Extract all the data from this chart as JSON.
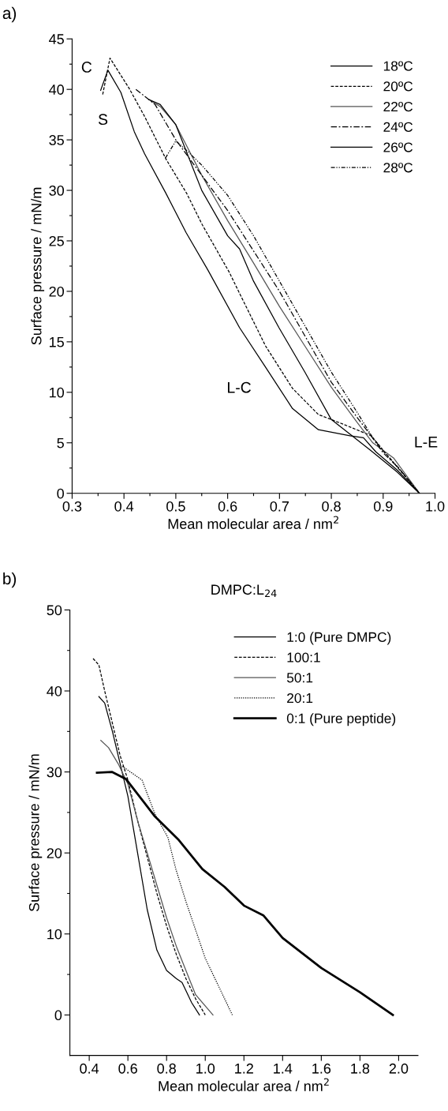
{
  "chart_data": [
    {
      "type": "line",
      "xlabel": "Mean molecular area / nm$^{2}$",
      "ylabel": "Surface pressure / mN/m",
      "xlim": [
        0.3,
        1.0
      ],
      "xticks": [
        0.3,
        {
          "value": 0.35,
          "label": null
        },
        0.4,
        {
          "value": 0.45,
          "label": null
        },
        0.5,
        {
          "value": 0.55,
          "label": null
        },
        0.6,
        {
          "value": 0.65,
          "label": null
        },
        0.7,
        {
          "value": 0.75,
          "label": null
        },
        0.8,
        {
          "value": 0.85,
          "label": null
        },
        0.9,
        {
          "value": 0.95,
          "label": null
        },
        {
          "value": 1,
          "label": "1.0"
        }
      ],
      "ylim": [
        0,
        45
      ],
      "yticks": [
        0,
        {
          "value": 2.5,
          "label": null
        },
        5,
        {
          "value": 7.5,
          "label": null
        },
        10,
        {
          "value": 12.5,
          "label": null
        },
        15,
        {
          "value": 17.5,
          "label": null
        },
        20,
        {
          "value": 22.5,
          "label": null
        },
        25,
        {
          "value": 27.5,
          "label": null
        },
        30,
        {
          "value": 32.5,
          "label": null
        },
        35,
        {
          "value": 37.5,
          "label": null
        },
        40,
        {
          "value": 42.5,
          "label": null
        },
        45
      ],
      "legend": "top right",
      "grid": false,
      "annotations": [
        "a)",
        "C",
        "S",
        "L-C",
        "L-E"
      ],
      "series": [
        {
          "name": "18ºC",
          "color": "#000000",
          "line_style": "solid",
          "x": [
            0.355,
            0.369,
            0.394,
            0.42,
            0.44,
            0.481,
            0.52,
            0.562,
            0.623,
            0.673,
            0.725,
            0.775,
            0.836,
            0.862,
            0.886,
            0.927,
            0.97
          ],
          "values": [
            39.9,
            41.9,
            39.7,
            35.8,
            33.6,
            29.7,
            25.8,
            22.1,
            16.4,
            12.5,
            8.4,
            6.3,
            5.7,
            5.5,
            4.1,
            2.3,
            0
          ]
        },
        {
          "name": "20ºC",
          "color": "#000000",
          "line_style": "dashed",
          "x": [
            0.359,
            0.373,
            0.41,
            0.44,
            0.481,
            0.521,
            0.551,
            0.603,
            0.623,
            0.673,
            0.725,
            0.775,
            0.825,
            0.877,
            0.927,
            0.97
          ],
          "values": [
            39.5,
            43.1,
            40.1,
            37.3,
            33.1,
            29.7,
            26.6,
            21.9,
            19.8,
            14.6,
            10.4,
            7.8,
            6.8,
            5.7,
            2.6,
            0
          ]
        },
        {
          "name": "22ºC",
          "color": "#555555",
          "line_style": "solid",
          "x": [
            0.448,
            0.47,
            0.5,
            0.55,
            0.6,
            0.65,
            0.7,
            0.75,
            0.8,
            0.85,
            0.88,
            0.92,
            0.97
          ],
          "values": [
            39.0,
            38.3,
            36.5,
            31.5,
            27,
            22.8,
            18.5,
            14.5,
            10.5,
            7,
            5,
            3.5,
            0
          ]
        },
        {
          "name": "24ºC",
          "color": "#000000",
          "line_style": "dashdot",
          "x": [
            0.423,
            0.46,
            0.5,
            0.55,
            0.6,
            0.65,
            0.7,
            0.75,
            0.8,
            0.85,
            0.875,
            0.9,
            0.93,
            0.97
          ],
          "values": [
            40.0,
            38.5,
            35,
            31.5,
            28,
            24,
            20,
            15.5,
            11,
            7.5,
            5.8,
            4,
            2.5,
            0
          ]
        },
        {
          "name": "26ºC",
          "color": "#000000",
          "line_style": "solid",
          "x": [
            0.448,
            0.47,
            0.5,
            0.55,
            0.6,
            0.623,
            0.65,
            0.699,
            0.749,
            0.8,
            0.877,
            0.927,
            0.97
          ],
          "values": [
            39.0,
            38.5,
            36.5,
            30,
            25.5,
            24.2,
            21,
            16.4,
            12.0,
            7.3,
            4.2,
            2.1,
            0
          ]
        },
        {
          "name": "28ºC",
          "color": "#000000",
          "line_style": "dashdotdot",
          "x": [
            0.48,
            0.5,
            0.52,
            0.55,
            0.6,
            0.65,
            0.7,
            0.75,
            0.8,
            0.85,
            0.88,
            0.9,
            0.93,
            0.97
          ],
          "values": [
            33.2,
            34.9,
            34,
            32.5,
            29.5,
            25.5,
            21,
            16.5,
            12,
            8,
            5.5,
            4.2,
            2.5,
            0
          ]
        }
      ]
    },
    {
      "type": "line",
      "title": "DMPC:L$_{24}$",
      "xlabel": "Mean molecular area / nm$^{2}$",
      "ylabel": "Surface pressure / mN/m",
      "xlim": [
        0.3,
        2.1
      ],
      "xticks": [
        0.4,
        0.6,
        0.8,
        {
          "value": 1,
          "label": "1.0"
        },
        1.2,
        1.4,
        1.6,
        1.8,
        {
          "value": 2,
          "label": "2.0"
        }
      ],
      "ylim": [
        -5,
        50
      ],
      "yticks": [
        0,
        {
          "value": 5,
          "label": null
        },
        10,
        {
          "value": 15,
          "label": null
        },
        20,
        {
          "value": 25,
          "label": null
        },
        30,
        {
          "value": 35,
          "label": null
        },
        40,
        {
          "value": 45,
          "label": null
        },
        50
      ],
      "legend": "top right",
      "grid": false,
      "annotations": [
        "b)"
      ],
      "series": [
        {
          "name": "1:0 (Pure DMPC)",
          "color": "#000000",
          "line_style": "solid",
          "x": [
            0.45,
            0.48,
            0.52,
            0.56,
            0.6,
            0.65,
            0.7,
            0.75,
            0.8,
            0.85,
            0.88,
            0.9,
            0.93,
            0.97
          ],
          "values": [
            39.3,
            38.5,
            35,
            31,
            27,
            20,
            13,
            8,
            5.5,
            4.5,
            4,
            3,
            1.5,
            0
          ]
        },
        {
          "name": "100:1",
          "color": "#000000",
          "line_style": "dashed",
          "x": [
            0.42,
            0.45,
            0.48,
            0.52,
            0.56,
            0.6,
            0.65,
            0.7,
            0.75,
            0.8,
            0.85,
            0.9,
            0.95,
            1.0
          ],
          "values": [
            44,
            43.2,
            40,
            36,
            32,
            29,
            24,
            19.5,
            15,
            11,
            7.5,
            4.5,
            2,
            0
          ]
        },
        {
          "name": "50:1",
          "color": "#555555",
          "line_style": "solid",
          "x": [
            0.46,
            0.5,
            0.55,
            0.6,
            0.65,
            0.7,
            0.75,
            0.8,
            0.85,
            0.9,
            0.95,
            1.04
          ],
          "values": [
            33.9,
            33,
            31,
            28.5,
            24,
            20,
            16,
            12,
            8.5,
            5.5,
            2.5,
            0
          ]
        },
        {
          "name": "20:1",
          "color": "#000000",
          "line_style": "dotted",
          "x": [
            0.571,
            0.673,
            0.74,
            0.807,
            0.848,
            0.9,
            1.0,
            1.1,
            1.14
          ],
          "values": [
            30.7,
            29.0,
            24.8,
            21.9,
            18,
            14,
            7,
            2,
            0
          ]
        },
        {
          "name": "0:1 (Pure peptide)",
          "color": "#000000",
          "line_style": "solid",
          "x": [
            0.44,
            0.517,
            0.591,
            0.74,
            0.863,
            0.985,
            1.1,
            1.2,
            1.3,
            1.4,
            1.6,
            1.8,
            1.97
          ],
          "values": [
            29.9,
            30.0,
            29.1,
            24.5,
            21.6,
            18.0,
            15.8,
            13.5,
            12.3,
            9.5,
            5.8,
            2.8,
            0
          ]
        }
      ]
    }
  ]
}
